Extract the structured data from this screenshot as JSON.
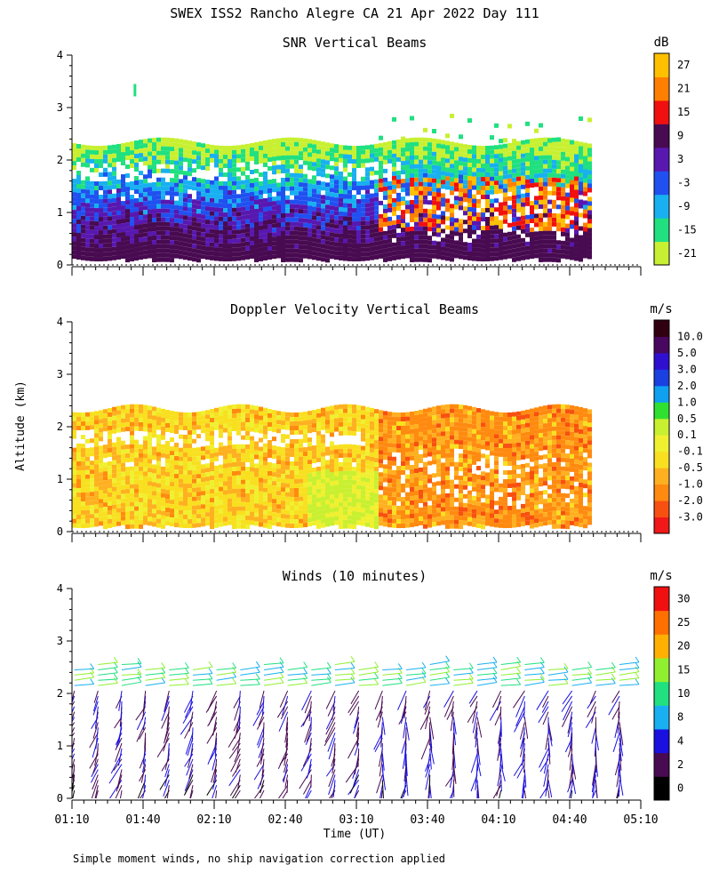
{
  "figure": {
    "title": "SWEX ISS2 Rancho Alegre CA  21 Apr 2022 Day 111",
    "y_axis_label": "Altitude (km)",
    "x_axis_label": "Time (UT)",
    "footnote": "Simple moment winds, no ship navigation correction applied"
  },
  "chart_data": [
    {
      "type": "heatmap",
      "id": "snr",
      "title": "SNR Vertical Beams",
      "ylabel": "Altitude (km)",
      "xlabel": "",
      "ylim": [
        0,
        4
      ],
      "y_ticks": [
        "0",
        "1",
        "2",
        "3",
        "4"
      ],
      "x_range": [
        "01:10",
        "05:10"
      ],
      "colorbar": {
        "unit": "dB",
        "colors": [
          "#c8f032",
          "#20e080",
          "#18b0f0",
          "#2050f0",
          "#5818b0",
          "#480a50",
          "#f01010",
          "#ff8000",
          "#ffc000"
        ],
        "labels": [
          "-21",
          "-15",
          "-9",
          "-3",
          "3",
          "9",
          "15",
          "21",
          "27"
        ]
      }
    },
    {
      "type": "heatmap",
      "id": "doppler",
      "title": "Doppler Velocity Vertical Beams",
      "ylabel": "Altitude (km)",
      "xlabel": "",
      "ylim": [
        0,
        4
      ],
      "y_ticks": [
        "0",
        "1",
        "2",
        "3",
        "4"
      ],
      "x_range": [
        "01:10",
        "05:10"
      ],
      "colorbar": {
        "unit": "m/s",
        "colors": [
          "#f01818",
          "#f85010",
          "#ff8a10",
          "#ffb020",
          "#f8e020",
          "#f0f030",
          "#c8f030",
          "#30e030",
          "#10a0f0",
          "#1a40e0",
          "#3010d0",
          "#480860",
          "#300010"
        ],
        "labels": [
          "-3.0",
          "-2.0",
          "-1.0",
          "-0.5",
          "-0.1",
          "0.1",
          "0.5",
          "1.0",
          "2.0",
          "3.0",
          "5.0",
          "10.0"
        ]
      }
    },
    {
      "type": "wind_barbs",
      "id": "winds",
      "title": "Winds (10 minutes)",
      "ylabel": "Altitude (km)",
      "xlabel": "Time (UT)",
      "ylim": [
        0,
        4
      ],
      "y_ticks": [
        "0",
        "1",
        "2",
        "3",
        "4"
      ],
      "x_ticks": [
        "01:10",
        "01:40",
        "02:10",
        "02:40",
        "03:10",
        "03:40",
        "04:10",
        "04:40",
        "05:10"
      ],
      "colorbar": {
        "unit": "m/s",
        "colors": [
          "#000000",
          "#480a50",
          "#1a10e0",
          "#18b0f0",
          "#20e080",
          "#90f030",
          "#ffb000",
          "#ff7000",
          "#f01010"
        ],
        "labels": [
          "0",
          "2",
          "4",
          "8",
          "10",
          "15",
          "20",
          "25",
          "30"
        ]
      }
    }
  ]
}
